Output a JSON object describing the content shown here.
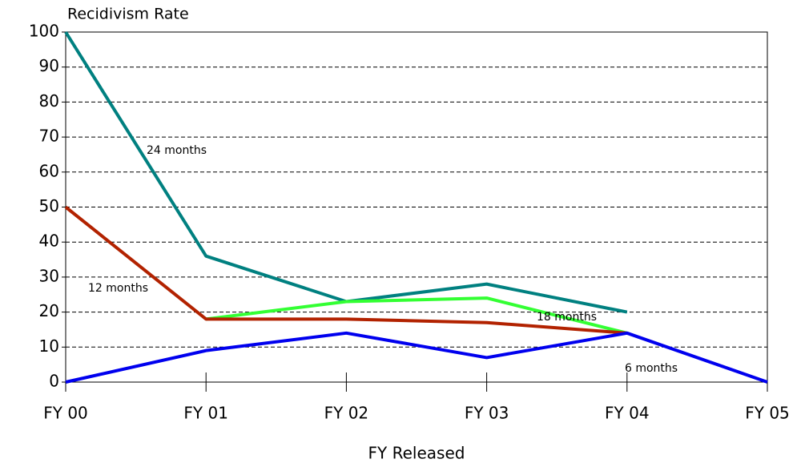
{
  "chart_data": {
    "type": "line",
    "title": "Recidivism Rate",
    "x_label": "FY Released",
    "categories": [
      "FY 00",
      "FY 01",
      "FY 02",
      "FY 03",
      "FY 04",
      "FY 05"
    ],
    "series": [
      {
        "name": "24 months",
        "color": "#008080",
        "values": [
          100,
          36,
          23,
          28,
          20,
          null
        ]
      },
      {
        "name": "18 months",
        "color": "#33ff33",
        "values": [
          null,
          18,
          23,
          24,
          14,
          null
        ]
      },
      {
        "name": "12 months",
        "color": "#b22200",
        "values": [
          50,
          18,
          18,
          17,
          14,
          null
        ]
      },
      {
        "name": "6 months",
        "color": "#0000ee",
        "values": [
          0,
          9,
          14,
          7,
          14,
          0
        ]
      }
    ],
    "ylim": [
      0,
      100
    ],
    "yticks": [
      0,
      10,
      20,
      30,
      40,
      50,
      60,
      70,
      80,
      90,
      100
    ],
    "grid": true
  }
}
